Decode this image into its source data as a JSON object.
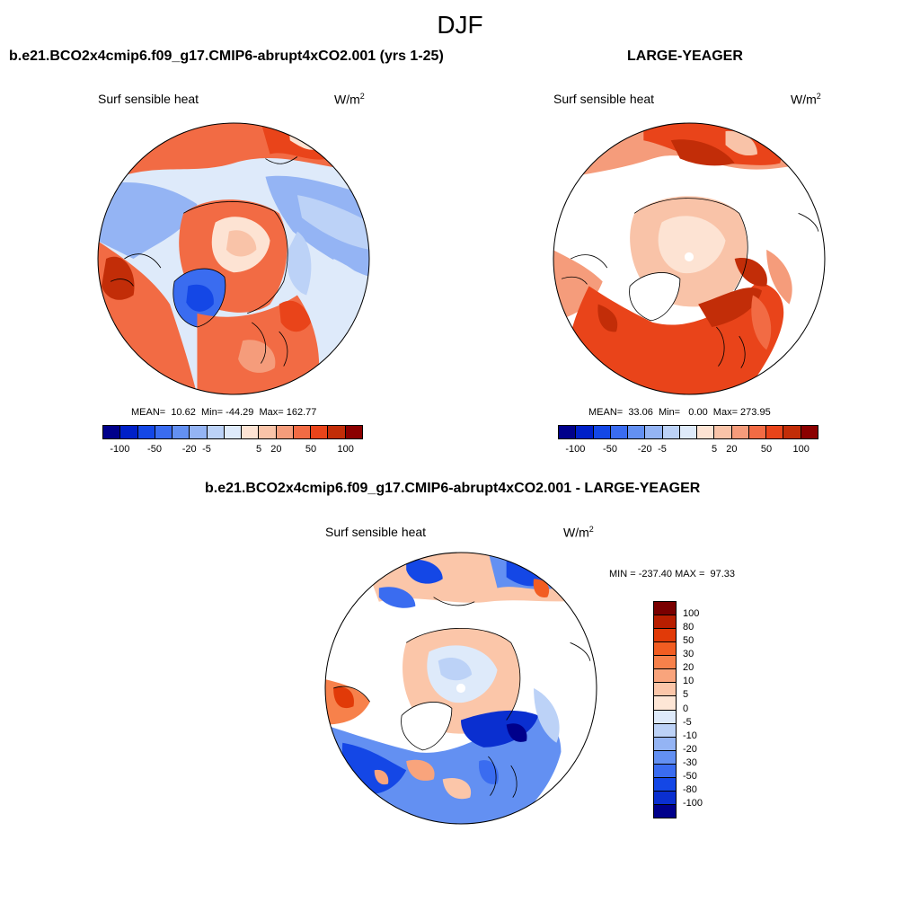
{
  "title": "DJF",
  "top_left": {
    "case": "b.e21.BCO2x4cmip6.f09_g17.CMIP6-abrupt4xCO2.001 (yrs 1-25)",
    "variable": "Surf sensible heat",
    "units_base": "W/m",
    "units_exp": "2",
    "stats": "MEAN=  10.62  Min= -44.29  Max= 162.77"
  },
  "top_right": {
    "case": "LARGE-YEAGER",
    "variable": "Surf sensible heat",
    "units_base": "W/m",
    "units_exp": "2",
    "stats": "MEAN=  33.06  Min=   0.00  Max= 273.95"
  },
  "bottom": {
    "case": "b.e21.BCO2x4cmip6.f09_g17.CMIP6-abrupt4xCO2.001 - LARGE-YEAGER",
    "variable": "Surf sensible heat",
    "units_base": "W/m",
    "units_exp": "2",
    "stats": "MIN = -237.40 MAX =  97.33"
  },
  "top_colorbar": {
    "colors": [
      "#00008b",
      "#0020c8",
      "#1447e6",
      "#3a6cf0",
      "#6390f2",
      "#94b4f4",
      "#bcd2f7",
      "#deeafa",
      "#fde3d3",
      "#f9c3a8",
      "#f59c7b",
      "#f26b44",
      "#e9441a",
      "#c22d08",
      "#8b0000"
    ],
    "labels": [
      "-100",
      "-50",
      "-20",
      "-5",
      "5",
      "20",
      "50",
      "100"
    ]
  },
  "bottom_colorbar": {
    "colors": [
      "#7a0000",
      "#b81e00",
      "#e13a08",
      "#f25d22",
      "#f7814b",
      "#f9a47c",
      "#fbc6a9",
      "#fde6d6",
      "#deeafa",
      "#bcd2f7",
      "#94b4f4",
      "#6390f2",
      "#3a6cf0",
      "#1447e6",
      "#0a2fd0",
      "#00008b"
    ],
    "labels": [
      "100",
      "80",
      "50",
      "30",
      "20",
      "10",
      "5",
      "0",
      "-5",
      "-10",
      "-20",
      "-30",
      "-50",
      "-80",
      "-100"
    ]
  }
}
